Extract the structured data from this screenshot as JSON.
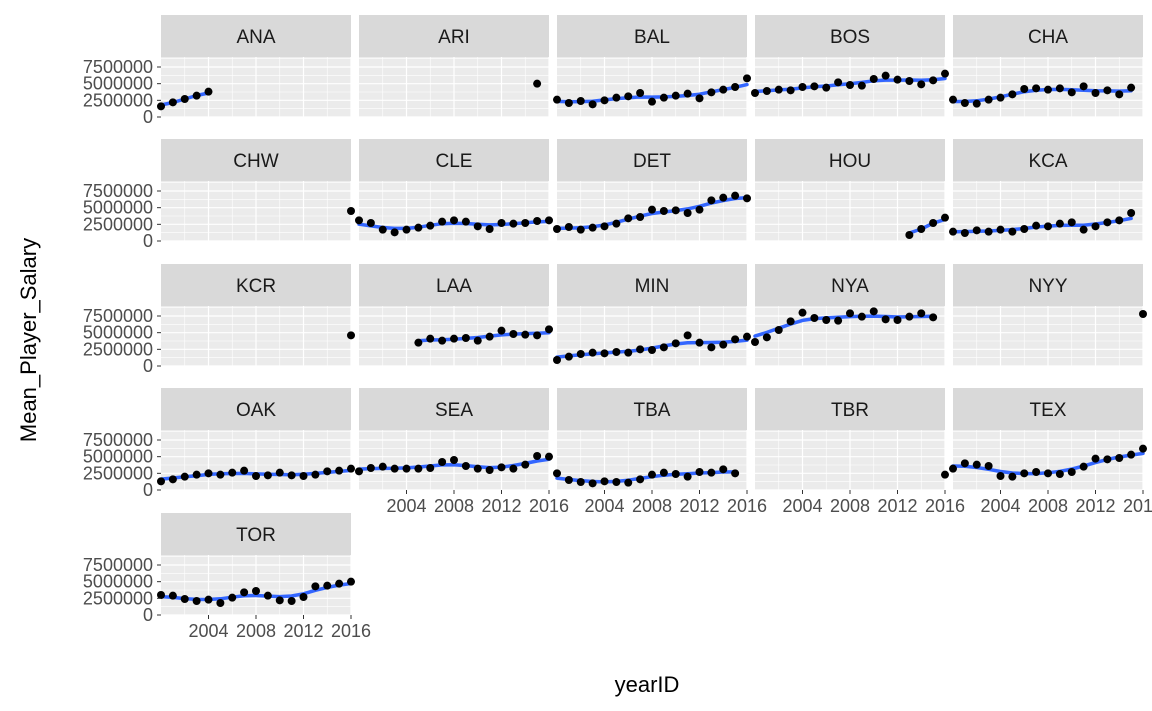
{
  "chart_data": {
    "type": "scatter",
    "facet_by": "teamID",
    "xlabel": "yearID",
    "ylabel": "Mean_Player_Salary",
    "xlim": [
      2000,
      2016
    ],
    "ylim": [
      0,
      9000000
    ],
    "x_ticks": [
      2004,
      2008,
      2012,
      2016
    ],
    "x_tick_labels": [
      "2004",
      "2008",
      "2012",
      "2016"
    ],
    "y_ticks": [
      0,
      2500000,
      5000000,
      7500000
    ],
    "y_tick_labels": [
      "0",
      "2500000",
      "5000000",
      "7500000"
    ],
    "smooth": true,
    "grid": true,
    "colors": {
      "panel_bg": "#EBEBEB",
      "strip_bg": "#D9D9D9",
      "grid_major": "#FFFFFF",
      "point": "#000000",
      "smooth_line": "#3366FF"
    },
    "panels": [
      {
        "label": "ANA",
        "x": [
          2000,
          2001,
          2002,
          2003,
          2004
        ],
        "y": [
          1600000,
          2200000,
          2700000,
          3200000,
          3800000
        ]
      },
      {
        "label": "ARI",
        "x": [
          2015
        ],
        "y": [
          5000000
        ]
      },
      {
        "label": "BAL",
        "x": [
          2000,
          2001,
          2002,
          2003,
          2004,
          2005,
          2006,
          2007,
          2008,
          2009,
          2010,
          2011,
          2012,
          2013,
          2014,
          2015,
          2016
        ],
        "y": [
          2600000,
          2100000,
          2400000,
          1900000,
          2500000,
          2900000,
          3100000,
          3600000,
          2300000,
          2900000,
          3200000,
          3500000,
          2800000,
          3700000,
          4100000,
          4500000,
          5800000
        ]
      },
      {
        "label": "BOS",
        "x": [
          2000,
          2001,
          2002,
          2003,
          2004,
          2005,
          2006,
          2007,
          2008,
          2009,
          2010,
          2011,
          2012,
          2013,
          2014,
          2015,
          2016
        ],
        "y": [
          3600000,
          3900000,
          4100000,
          4000000,
          4500000,
          4600000,
          4400000,
          5200000,
          4800000,
          4700000,
          5700000,
          6200000,
          5600000,
          5400000,
          4900000,
          5500000,
          6500000
        ]
      },
      {
        "label": "CHA",
        "x": [
          2000,
          2001,
          2002,
          2003,
          2004,
          2005,
          2006,
          2007,
          2008,
          2009,
          2010,
          2011,
          2012,
          2013,
          2014,
          2015
        ],
        "y": [
          2600000,
          2100000,
          2000000,
          2600000,
          2900000,
          3400000,
          4200000,
          4300000,
          4100000,
          4300000,
          3700000,
          4600000,
          3600000,
          4000000,
          3400000,
          4400000
        ]
      },
      {
        "label": "CHW",
        "x": [
          2016
        ],
        "y": [
          4500000
        ]
      },
      {
        "label": "CLE",
        "x": [
          2000,
          2001,
          2002,
          2003,
          2004,
          2005,
          2006,
          2007,
          2008,
          2009,
          2010,
          2011,
          2012,
          2013,
          2014,
          2015,
          2016
        ],
        "y": [
          3100000,
          2700000,
          1700000,
          1300000,
          1700000,
          2000000,
          2300000,
          2900000,
          3100000,
          2900000,
          2200000,
          1800000,
          2700000,
          2600000,
          2700000,
          3000000,
          3100000
        ]
      },
      {
        "label": "DET",
        "x": [
          2000,
          2001,
          2002,
          2003,
          2004,
          2005,
          2006,
          2007,
          2008,
          2009,
          2010,
          2011,
          2012,
          2013,
          2014,
          2015,
          2016
        ],
        "y": [
          1800000,
          2100000,
          1700000,
          2000000,
          2200000,
          2600000,
          3400000,
          3600000,
          4700000,
          4500000,
          4600000,
          4200000,
          4700000,
          6100000,
          6500000,
          6800000,
          6400000
        ]
      },
      {
        "label": "HOU",
        "x": [
          2013,
          2014,
          2015,
          2016
        ],
        "y": [
          900000,
          1800000,
          2700000,
          3500000
        ]
      },
      {
        "label": "KCA",
        "x": [
          2000,
          2001,
          2002,
          2003,
          2004,
          2005,
          2006,
          2007,
          2008,
          2009,
          2010,
          2011,
          2012,
          2013,
          2014,
          2015
        ],
        "y": [
          1400000,
          1200000,
          1600000,
          1400000,
          1700000,
          1400000,
          1800000,
          2300000,
          2200000,
          2600000,
          2800000,
          1700000,
          2200000,
          2800000,
          3100000,
          4200000
        ]
      },
      {
        "label": "KCR",
        "x": [
          2016
        ],
        "y": [
          4600000
        ]
      },
      {
        "label": "LAA",
        "x": [
          2005,
          2006,
          2007,
          2008,
          2009,
          2010,
          2011,
          2012,
          2013,
          2014,
          2015,
          2016
        ],
        "y": [
          3500000,
          4100000,
          3800000,
          4100000,
          4200000,
          3800000,
          4400000,
          5300000,
          4800000,
          4700000,
          4600000,
          5500000
        ]
      },
      {
        "label": "MIN",
        "x": [
          2000,
          2001,
          2002,
          2003,
          2004,
          2005,
          2006,
          2007,
          2008,
          2009,
          2010,
          2011,
          2012,
          2013,
          2014,
          2015,
          2016
        ],
        "y": [
          900000,
          1400000,
          1800000,
          2000000,
          1900000,
          2100000,
          2000000,
          2500000,
          2400000,
          2800000,
          3400000,
          4600000,
          3500000,
          2800000,
          3200000,
          4000000,
          4400000
        ]
      },
      {
        "label": "NYA",
        "x": [
          2000,
          2001,
          2002,
          2003,
          2004,
          2005,
          2006,
          2007,
          2008,
          2009,
          2010,
          2011,
          2012,
          2013,
          2014,
          2015
        ],
        "y": [
          3600000,
          4300000,
          5400000,
          6700000,
          8000000,
          7200000,
          6900000,
          6800000,
          7900000,
          7400000,
          8200000,
          7000000,
          6900000,
          7400000,
          7900000,
          7300000
        ]
      },
      {
        "label": "NYY",
        "x": [
          2016
        ],
        "y": [
          7800000
        ]
      },
      {
        "label": "OAK",
        "x": [
          2000,
          2001,
          2002,
          2003,
          2004,
          2005,
          2006,
          2007,
          2008,
          2009,
          2010,
          2011,
          2012,
          2013,
          2014,
          2015,
          2016
        ],
        "y": [
          1300000,
          1600000,
          2000000,
          2300000,
          2500000,
          2300000,
          2600000,
          2900000,
          2100000,
          2200000,
          2600000,
          2200000,
          2100000,
          2300000,
          2800000,
          2900000,
          3200000
        ]
      },
      {
        "label": "SEA",
        "x": [
          2000,
          2001,
          2002,
          2003,
          2004,
          2005,
          2006,
          2007,
          2008,
          2009,
          2010,
          2011,
          2012,
          2013,
          2014,
          2015,
          2016
        ],
        "y": [
          2800000,
          3300000,
          3500000,
          3200000,
          3200000,
          3200000,
          3300000,
          4200000,
          4500000,
          3600000,
          3200000,
          3000000,
          3400000,
          3200000,
          3800000,
          5100000,
          5000000
        ]
      },
      {
        "label": "TBA",
        "x": [
          2000,
          2001,
          2002,
          2003,
          2004,
          2005,
          2006,
          2007,
          2008,
          2009,
          2010,
          2011,
          2012,
          2013,
          2014,
          2015
        ],
        "y": [
          2500000,
          1500000,
          1200000,
          1000000,
          1300000,
          1200000,
          1100000,
          1600000,
          2300000,
          2600000,
          2400000,
          2000000,
          2700000,
          2600000,
          3100000,
          2500000
        ]
      },
      {
        "label": "TBR",
        "x": [
          2016
        ],
        "y": [
          2300000
        ]
      },
      {
        "label": "TEX",
        "x": [
          2000,
          2001,
          2002,
          2003,
          2004,
          2005,
          2006,
          2007,
          2008,
          2009,
          2010,
          2011,
          2012,
          2013,
          2014,
          2015,
          2016
        ],
        "y": [
          3200000,
          4000000,
          3800000,
          3600000,
          2100000,
          2000000,
          2500000,
          2700000,
          2500000,
          2400000,
          2700000,
          3500000,
          4700000,
          4600000,
          4800000,
          5300000,
          6200000
        ]
      },
      {
        "label": "TOR",
        "x": [
          2000,
          2001,
          2002,
          2003,
          2004,
          2005,
          2006,
          2007,
          2008,
          2009,
          2010,
          2011,
          2012,
          2013,
          2014,
          2015,
          2016
        ],
        "y": [
          3000000,
          2900000,
          2400000,
          2100000,
          2300000,
          1800000,
          2600000,
          3400000,
          3600000,
          2900000,
          2200000,
          2100000,
          2700000,
          4300000,
          4400000,
          4700000,
          5000000
        ]
      }
    ]
  }
}
